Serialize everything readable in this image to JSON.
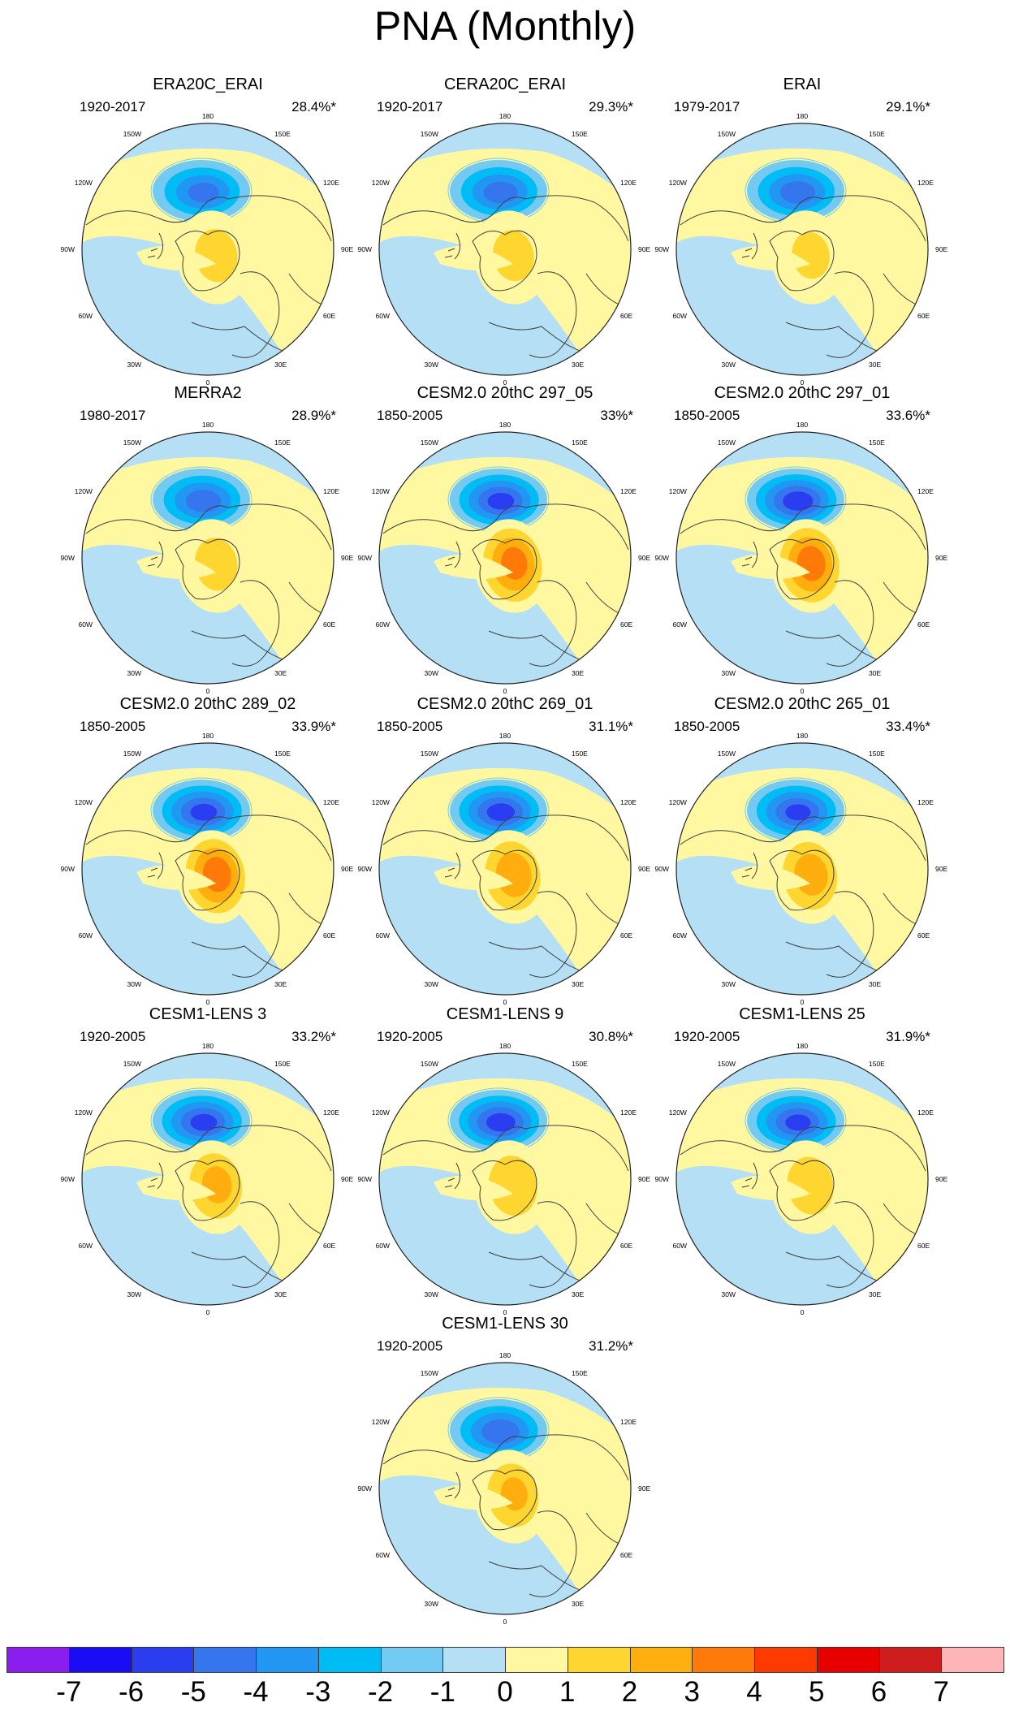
{
  "figure": {
    "title": "PNA (Monthly)"
  },
  "longitude_labels": [
    "180",
    "150E",
    "120E",
    "90E",
    "60E",
    "30E",
    "0",
    "30W",
    "60W",
    "90W",
    "120W",
    "150W"
  ],
  "colors": {
    "map_land_outline": "#404040",
    "map_rim": "#222222"
  },
  "panels": [
    {
      "title": "ERA20C_ERAI",
      "years": "1920-2017",
      "variance": "28.4%*",
      "neg_strength": 4.4,
      "pos_strength": 2.3
    },
    {
      "title": "CERA20C_ERAI",
      "years": "1920-2017",
      "variance": "29.3%*",
      "neg_strength": 4.6,
      "pos_strength": 2.2
    },
    {
      "title": "ERAI",
      "years": "1979-2017",
      "variance": "29.1%*",
      "neg_strength": 4.7,
      "pos_strength": 2.0
    },
    {
      "title": "MERRA2",
      "years": "1980-2017",
      "variance": "28.9%*",
      "neg_strength": 4.7,
      "pos_strength": 2.3
    },
    {
      "title": "CESM2.0 20thC 297_05",
      "years": "1850-2005",
      "variance": "33%*",
      "neg_strength": 5.5,
      "pos_strength": 4.6
    },
    {
      "title": "CESM2.0 20thC 297_01",
      "years": "1850-2005",
      "variance": "33.6%*",
      "neg_strength": 5.8,
      "pos_strength": 4.8
    },
    {
      "title": "CESM2.0 20thC 289_02",
      "years": "1850-2005",
      "variance": "33.9%*",
      "neg_strength": 5.5,
      "pos_strength": 4.8
    },
    {
      "title": "CESM2.0 20thC 269_01",
      "years": "1850-2005",
      "variance": "31.1%*",
      "neg_strength": 5.6,
      "pos_strength": 3.8
    },
    {
      "title": "CESM2.0 20thC 265_01",
      "years": "1850-2005",
      "variance": "33.4%*",
      "neg_strength": 5.4,
      "pos_strength": 3.6
    },
    {
      "title": "CESM1-LENS 3",
      "years": "1920-2005",
      "variance": "33.2%*",
      "neg_strength": 5.5,
      "pos_strength": 3.3
    },
    {
      "title": "CESM1-LENS 9",
      "years": "1920-2005",
      "variance": "30.8%*",
      "neg_strength": 5.7,
      "pos_strength": 2.8
    },
    {
      "title": "CESM1-LENS 25",
      "years": "1920-2005",
      "variance": "31.9%*",
      "neg_strength": 5.4,
      "pos_strength": 2.6
    },
    {
      "title": "CESM1-LENS 30",
      "years": "1920-2005",
      "variance": "31.2%*",
      "neg_strength": 4.9,
      "pos_strength": 3.1
    }
  ],
  "colorbar": {
    "labels": [
      "-7",
      "-6",
      "-5",
      "-4",
      "-3",
      "-2",
      "-1",
      "0",
      "1",
      "2",
      "3",
      "4",
      "5",
      "6",
      "7"
    ],
    "colors": [
      "#8a1ef0",
      "#1a0df5",
      "#2a3df0",
      "#3575ee",
      "#2196f3",
      "#00bcf5",
      "#72caf3",
      "#b5dff4",
      "#fff8a0",
      "#ffd530",
      "#ffae0d",
      "#ff7a08",
      "#ff3a00",
      "#e80000",
      "#cf1c1c",
      "#ffb5b8"
    ]
  }
}
